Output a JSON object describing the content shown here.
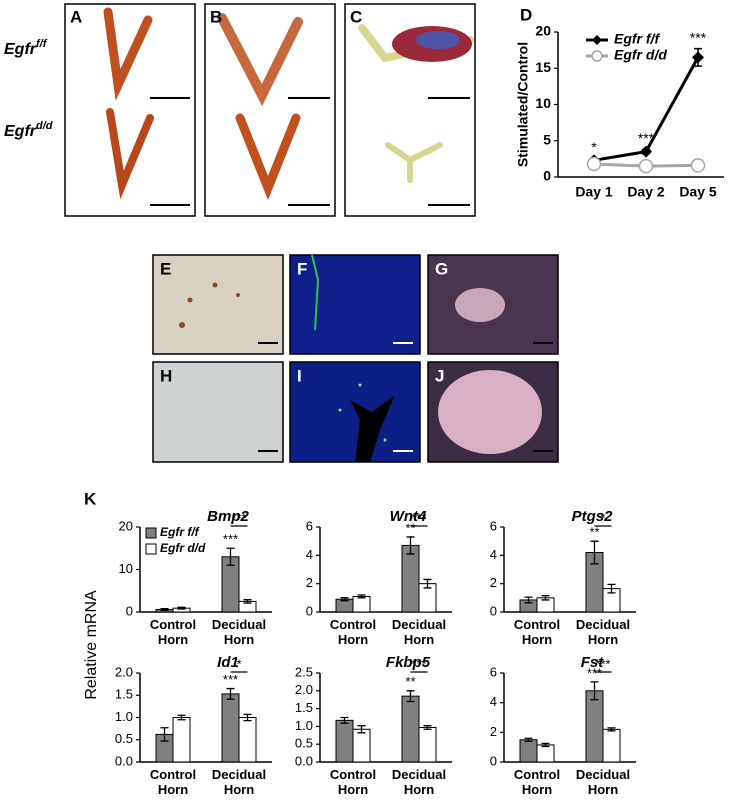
{
  "photo_panels": {
    "labels": [
      "A",
      "B",
      "C"
    ],
    "genotypes": [
      {
        "gene": "Egfr",
        "allele": "f/f"
      },
      {
        "gene": "Egfr",
        "allele": "d/d"
      }
    ]
  },
  "histology_panels": {
    "labels": [
      "E",
      "F",
      "G",
      "H",
      "I",
      "J"
    ]
  },
  "figure_k": {
    "label": "K",
    "ylabel": "Relative mRNA"
  },
  "chart_data": [
    {
      "type": "line",
      "panel_label": "D",
      "ylabel": "Stimulated/Control",
      "categories": [
        "Day 1",
        "Day 2",
        "Day 5"
      ],
      "series": [
        {
          "name": "Egfr f/f",
          "color": "#000000",
          "marker": "diamond",
          "values": [
            2.3,
            3.5,
            16.5
          ],
          "errors": [
            0.3,
            0.3,
            1.2
          ]
        },
        {
          "name": "Egfr d/d",
          "color": "#a6a6a6",
          "marker": "circle",
          "values": [
            1.8,
            1.5,
            1.6
          ]
        }
      ],
      "annotations": [
        "*",
        "***",
        "***"
      ],
      "ylim": [
        0,
        20
      ],
      "yticks": [
        0,
        5,
        10,
        15,
        20
      ],
      "legend": "top"
    },
    {
      "type": "bar",
      "title": "Bmp2",
      "categories": [
        "Control Horn",
        "Decidual Horn"
      ],
      "series": [
        {
          "name": "Egfr f/f",
          "color": "#808080",
          "values": [
            0.6,
            13
          ],
          "errors": [
            0.2,
            2
          ]
        },
        {
          "name": "Egfr d/d",
          "color": "#ffffff",
          "values": [
            0.9,
            2.5
          ],
          "errors": [
            0.2,
            0.4
          ]
        }
      ],
      "significance": "***",
      "comparison": "***",
      "ylim": [
        0,
        20
      ],
      "yticks": [
        0,
        10,
        20
      ],
      "legend": "top-left"
    },
    {
      "type": "bar",
      "title": "Wnt4",
      "categories": [
        "Control Horn",
        "Decidual Horn"
      ],
      "series": [
        {
          "color": "#808080",
          "values": [
            0.9,
            4.7
          ],
          "errors": [
            0.1,
            0.6
          ]
        },
        {
          "color": "#ffffff",
          "values": [
            1.1,
            2.0
          ],
          "errors": [
            0.1,
            0.3
          ]
        }
      ],
      "significance": "**",
      "comparison": "***",
      "ylim": [
        0,
        6
      ],
      "yticks": [
        0,
        2,
        4,
        6
      ]
    },
    {
      "type": "bar",
      "title": "Ptgs2",
      "categories": [
        "Control Horn",
        "Decidual Horn"
      ],
      "series": [
        {
          "color": "#808080",
          "values": [
            0.85,
            4.2
          ],
          "errors": [
            0.2,
            0.8
          ]
        },
        {
          "color": "#ffffff",
          "values": [
            1.0,
            1.65
          ],
          "errors": [
            0.15,
            0.3
          ]
        }
      ],
      "significance": "**",
      "comparison": "*",
      "ylim": [
        0,
        6
      ],
      "yticks": [
        0,
        2,
        4,
        6
      ]
    },
    {
      "type": "bar",
      "title": "Id1",
      "categories": [
        "Control Horn",
        "Decidual Horn"
      ],
      "series": [
        {
          "color": "#808080",
          "values": [
            0.62,
            1.53
          ],
          "errors": [
            0.15,
            0.12
          ]
        },
        {
          "color": "#ffffff",
          "values": [
            1.0,
            1.0
          ],
          "errors": [
            0.05,
            0.07
          ]
        }
      ],
      "significance": "***",
      "comparison": "*",
      "ylim": [
        0,
        2
      ],
      "yticks": [
        {
          "value": 0,
          "label": "0.0"
        },
        0.5,
        {
          "value": 1,
          "label": "1.0"
        },
        1.5,
        {
          "value": 2,
          "label": "2.0"
        }
      ]
    },
    {
      "type": "bar",
      "title": "Fkbp5",
      "categories": [
        "Control Horn",
        "Decidual Horn"
      ],
      "series": [
        {
          "color": "#808080",
          "values": [
            1.17,
            1.85
          ],
          "errors": [
            0.08,
            0.15
          ]
        },
        {
          "color": "#ffffff",
          "values": [
            0.92,
            0.97
          ],
          "errors": [
            0.1,
            0.05
          ]
        }
      ],
      "significance": "**",
      "comparison": "***",
      "ylim": [
        0,
        2.5
      ],
      "yticks": [
        {
          "value": 0,
          "label": "0.0"
        },
        0.5,
        {
          "value": 1,
          "label": "1.0"
        },
        1.5,
        {
          "value": 2,
          "label": "2.0"
        },
        2.5
      ]
    },
    {
      "type": "bar",
      "title": "Fst",
      "categories": [
        "Control Horn",
        "Decidual Horn"
      ],
      "series": [
        {
          "color": "#808080",
          "values": [
            1.5,
            4.8
          ],
          "errors": [
            0.1,
            0.6
          ]
        },
        {
          "color": "#ffffff",
          "values": [
            1.15,
            2.2
          ],
          "errors": [
            0.1,
            0.1
          ]
        }
      ],
      "significance": "***",
      "comparison": "***",
      "ylim": [
        0,
        6
      ],
      "yticks": [
        0,
        2,
        4,
        6
      ]
    }
  ]
}
